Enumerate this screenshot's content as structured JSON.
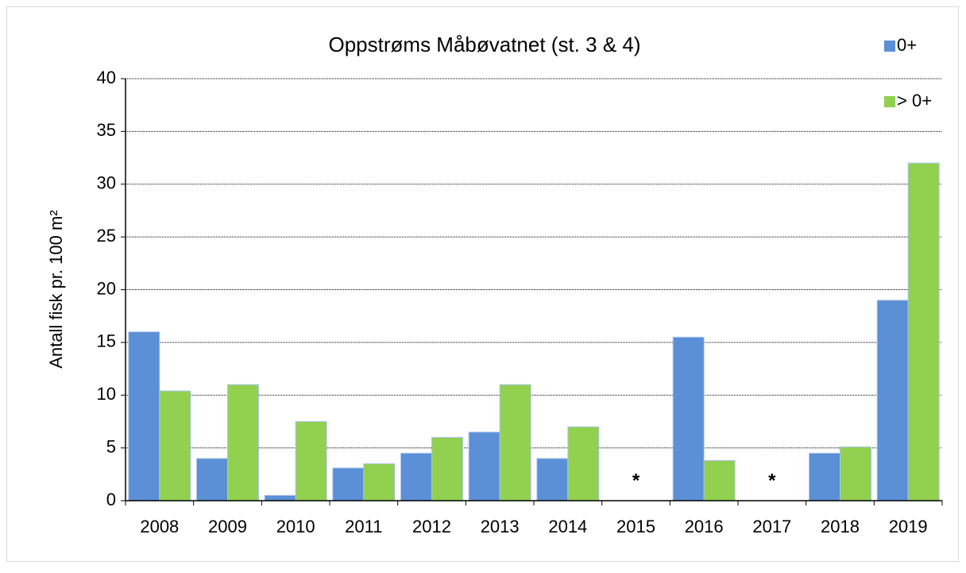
{
  "chart_data": {
    "type": "bar",
    "title": "Oppstrøms Måbøvatnet (st. 3 & 4)",
    "y_label": "Antall fisk pr. 100 m²",
    "categories": [
      "2008",
      "2009",
      "2010",
      "2011",
      "2012",
      "2013",
      "2014",
      "2015",
      "2016",
      "2017",
      "2018",
      "2019"
    ],
    "series": [
      {
        "name": "0+",
        "color": "#5b8fd6",
        "values": [
          16,
          4,
          0.5,
          3.1,
          4.5,
          6.5,
          4,
          null,
          15.5,
          null,
          4.5,
          19
        ]
      },
      {
        "name": "> 0+",
        "color": "#92d050",
        "values": [
          10.4,
          11,
          7.5,
          3.5,
          6,
          11,
          7,
          null,
          3.8,
          null,
          5.1,
          32
        ]
      }
    ],
    "annotations": [
      {
        "text": "*",
        "category": "2015"
      },
      {
        "text": "*",
        "category": "2017"
      }
    ],
    "ylim": [
      0,
      40
    ],
    "yticks": [
      0,
      5,
      10,
      15,
      20,
      25,
      30,
      35,
      40
    ],
    "grid": true,
    "legend": "top-right"
  }
}
